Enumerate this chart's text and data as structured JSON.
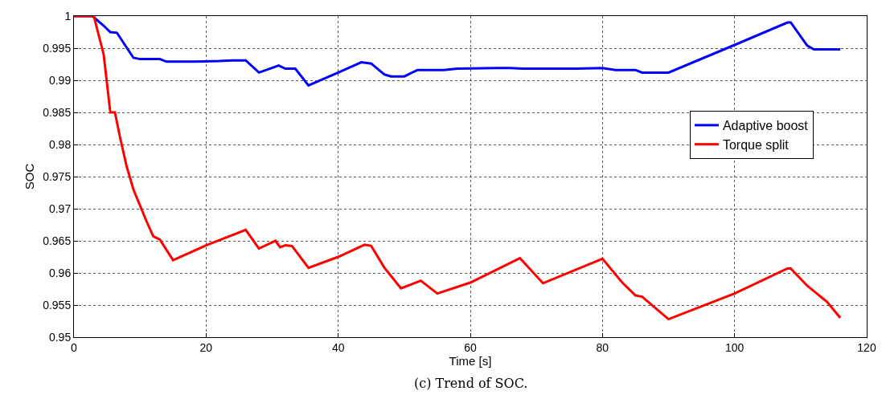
{
  "chart_data": {
    "type": "line",
    "xlabel": "Time [s]",
    "ylabel": "SOC",
    "annotations": [
      "(c) Trend of SOC."
    ],
    "xlim": [
      0,
      120
    ],
    "xticks": [
      0,
      20,
      40,
      60,
      80,
      100,
      120
    ],
    "ylim": [
      0.95,
      1
    ],
    "yticks": [
      0.95,
      0.955,
      0.96,
      0.965,
      0.97,
      0.975,
      0.98,
      0.985,
      0.99,
      0.995,
      1
    ],
    "grid": true,
    "legend": "right",
    "line_style": "solid",
    "marker": "none",
    "series": [
      {
        "name": "Adaptive boost",
        "color": "#0000ff",
        "x": [
          0,
          2.8,
          4.5,
          5.5,
          6.5,
          9,
          10,
          13,
          14,
          18,
          22,
          24,
          26,
          28,
          31,
          32,
          33.5,
          35.5,
          40,
          43.5,
          45,
          47,
          48,
          50,
          52,
          56,
          58,
          64,
          66,
          68,
          76,
          80,
          82,
          85,
          86,
          90,
          100,
          108,
          108.5,
          111,
          112,
          116
        ],
        "values": [
          1,
          1,
          0.9985,
          0.9975,
          0.9974,
          0.9935,
          0.9933,
          0.9933,
          0.9929,
          0.9929,
          0.993,
          0.9931,
          0.9931,
          0.9912,
          0.9923,
          0.9918,
          0.9918,
          0.9892,
          0.9912,
          0.9928,
          0.9926,
          0.9909,
          0.9906,
          0.9906,
          0.9916,
          0.9916,
          0.9918,
          0.9919,
          0.9919,
          0.9918,
          0.9918,
          0.9919,
          0.9916,
          0.9916,
          0.9912,
          0.9912,
          0.9955,
          0.999,
          0.999,
          0.9954,
          0.9948,
          0.9948
        ]
      },
      {
        "name": "Torque split",
        "color": "#ff0000",
        "x": [
          0,
          3,
          4.5,
          5.5,
          6.2,
          7,
          8,
          9,
          10,
          11,
          12,
          13,
          15,
          20,
          26,
          28,
          30.5,
          31.2,
          32,
          33,
          35.5,
          40,
          44,
          45,
          47,
          49.5,
          52.5,
          55,
          60,
          67.5,
          71,
          80,
          83,
          85,
          86,
          90,
          100,
          108,
          108.5,
          111,
          114,
          116
        ],
        "values": [
          1,
          1,
          0.994,
          0.985,
          0.985,
          0.981,
          0.9765,
          0.973,
          0.9705,
          0.968,
          0.9657,
          0.9652,
          0.962,
          0.9643,
          0.9667,
          0.9638,
          0.965,
          0.964,
          0.9643,
          0.9642,
          0.9608,
          0.9625,
          0.9644,
          0.9642,
          0.9608,
          0.9576,
          0.9588,
          0.9568,
          0.9585,
          0.9623,
          0.9584,
          0.9622,
          0.9585,
          0.9565,
          0.9563,
          0.9528,
          0.9568,
          0.9607,
          0.9607,
          0.958,
          0.9555,
          0.953
        ]
      }
    ]
  }
}
